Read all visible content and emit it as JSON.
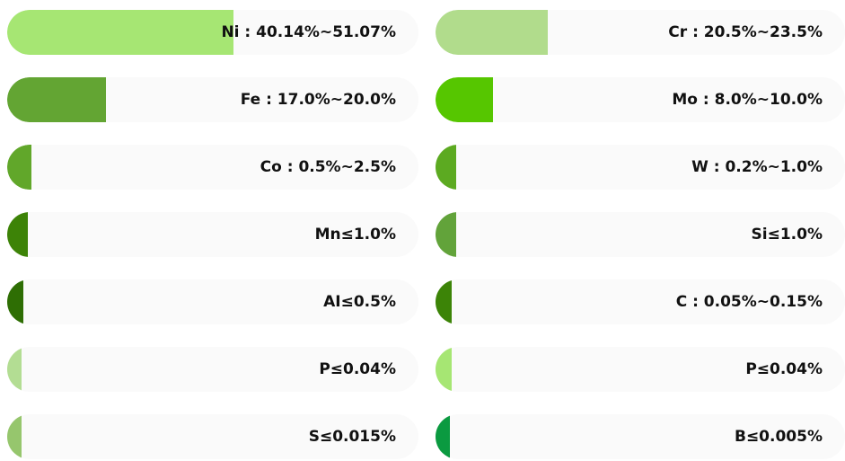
{
  "bars": [
    {
      "label": "Ni : 40.14%~51.07%",
      "level": 0.55,
      "color": "#a6e673"
    },
    {
      "label": "Cr : 20.5%~23.5%",
      "level": 0.275,
      "color": "#b1dc8c"
    },
    {
      "label": "Fe : 17.0%~20.0%",
      "level": 0.24,
      "color": "#63a533"
    },
    {
      "label": "Mo : 8.0%~10.0%",
      "level": 0.14,
      "color": "#56c600"
    },
    {
      "label": "Co : 0.5%~2.5%",
      "level": 0.06,
      "color": "#61a72a"
    },
    {
      "label": "W : 0.2%~1.0%",
      "level": 0.05,
      "color": "#5caa21"
    },
    {
      "label": "Mn≤1.0%",
      "level": 0.05,
      "color": "#3d8307"
    },
    {
      "label": "Si≤1.0%",
      "level": 0.05,
      "color": "#62a33a"
    },
    {
      "label": "AI≤0.5%",
      "level": 0.04,
      "color": "#2e6e04"
    },
    {
      "label": "C : 0.05%~0.15%",
      "level": 0.04,
      "color": "#3c8407"
    },
    {
      "label": "P≤0.04%",
      "level": 0.035,
      "color": "#b3dd93"
    },
    {
      "label": "P≤0.04%",
      "level": 0.04,
      "color": "#a6e673"
    },
    {
      "label": "S≤0.015%",
      "level": 0.035,
      "color": "#96c66d"
    },
    {
      "label": "B≤0.005%",
      "level": 0.035,
      "color": "#0b9a40"
    }
  ]
}
